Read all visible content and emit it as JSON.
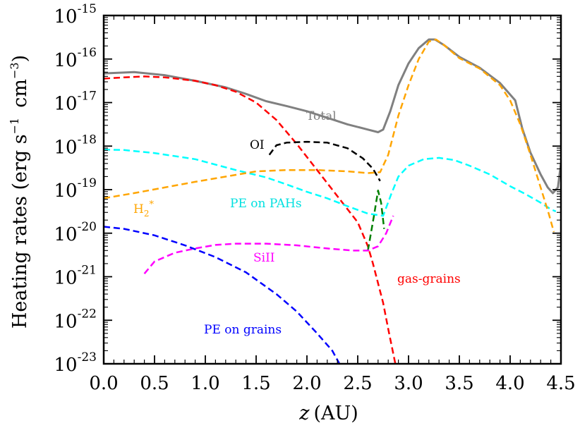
{
  "chart_data": {
    "type": "line",
    "title": "",
    "xlabel": "z",
    "xlabel_unit": "(AU)",
    "ylabel": "Heating rates (erg s",
    "ylabel_mid": "cm",
    "ylabel_sup1": "−1",
    "ylabel_sup2": "−3",
    "ylabel_close": ")",
    "yscale": "log",
    "xlim": [
      0.0,
      4.5
    ],
    "ylim_exp": [
      -23,
      -15
    ],
    "x_ticks": [
      {
        "value": 0.0,
        "label": "0.0"
      },
      {
        "value": 0.5,
        "label": "0.5"
      },
      {
        "value": 1.0,
        "label": "1.0"
      },
      {
        "value": 1.5,
        "label": "1.5"
      },
      {
        "value": 2.0,
        "label": "2.0"
      },
      {
        "value": 2.5,
        "label": "2.5"
      },
      {
        "value": 3.0,
        "label": "3.0"
      },
      {
        "value": 3.5,
        "label": "3.5"
      },
      {
        "value": 4.0,
        "label": "4.0"
      },
      {
        "value": 4.5,
        "label": "4.5"
      }
    ],
    "y_ticks": [
      {
        "exp": -23,
        "base": "10",
        "sup": "-23"
      },
      {
        "exp": -22,
        "base": "10",
        "sup": "-22"
      },
      {
        "exp": -21,
        "base": "10",
        "sup": "-21"
      },
      {
        "exp": -20,
        "base": "10",
        "sup": "-20"
      },
      {
        "exp": -19,
        "base": "10",
        "sup": "-19"
      },
      {
        "exp": -18,
        "base": "10",
        "sup": "-18"
      },
      {
        "exp": -17,
        "base": "10",
        "sup": "-17"
      },
      {
        "exp": -16,
        "base": "10",
        "sup": "-16"
      },
      {
        "exp": -15,
        "base": "10",
        "sup": "-15"
      }
    ],
    "series": [
      {
        "name": "Total",
        "color": "#808080",
        "dashed": false,
        "width": 3,
        "points": [
          [
            0,
            -16.33
          ],
          [
            0.3,
            -16.3
          ],
          [
            0.6,
            -16.37
          ],
          [
            0.9,
            -16.5
          ],
          [
            1.2,
            -16.65
          ],
          [
            1.4,
            -16.8
          ],
          [
            1.6,
            -16.97
          ],
          [
            1.8,
            -17.08
          ],
          [
            2.0,
            -17.2
          ],
          [
            2.2,
            -17.35
          ],
          [
            2.4,
            -17.5
          ],
          [
            2.6,
            -17.62
          ],
          [
            2.7,
            -17.68
          ],
          [
            2.75,
            -17.62
          ],
          [
            2.82,
            -17.2
          ],
          [
            2.9,
            -16.6
          ],
          [
            3.0,
            -16.1
          ],
          [
            3.1,
            -15.75
          ],
          [
            3.2,
            -15.55
          ],
          [
            3.26,
            -15.55
          ],
          [
            3.35,
            -15.68
          ],
          [
            3.5,
            -15.95
          ],
          [
            3.7,
            -16.2
          ],
          [
            3.9,
            -16.55
          ],
          [
            4.05,
            -16.95
          ],
          [
            4.12,
            -17.6
          ],
          [
            4.2,
            -18.15
          ],
          [
            4.3,
            -18.65
          ],
          [
            4.37,
            -18.95
          ],
          [
            4.42,
            -19.08
          ],
          [
            4.47,
            -18.95
          ],
          [
            4.5,
            -18.4
          ]
        ]
      },
      {
        "name": "gas-grains",
        "color": "#ff0000",
        "dashed": true,
        "width": 2.5,
        "points": [
          [
            0,
            -16.45
          ],
          [
            0.2,
            -16.42
          ],
          [
            0.4,
            -16.4
          ],
          [
            0.6,
            -16.42
          ],
          [
            0.9,
            -16.5
          ],
          [
            1.1,
            -16.6
          ],
          [
            1.3,
            -16.75
          ],
          [
            1.5,
            -17.0
          ],
          [
            1.7,
            -17.4
          ],
          [
            1.9,
            -17.95
          ],
          [
            2.1,
            -18.55
          ],
          [
            2.3,
            -19.15
          ],
          [
            2.5,
            -19.75
          ],
          [
            2.6,
            -20.3
          ],
          [
            2.65,
            -20.7
          ],
          [
            2.75,
            -21.6
          ],
          [
            2.8,
            -22.2
          ],
          [
            2.87,
            -23.0
          ]
        ]
      },
      {
        "name": "OI",
        "color": "#000000",
        "dashed": true,
        "width": 2.5,
        "points": [
          [
            1.63,
            -18.2
          ],
          [
            1.7,
            -17.98
          ],
          [
            1.8,
            -17.92
          ],
          [
            2.0,
            -17.9
          ],
          [
            2.2,
            -17.92
          ],
          [
            2.4,
            -18.05
          ],
          [
            2.55,
            -18.28
          ],
          [
            2.65,
            -18.52
          ],
          [
            2.72,
            -18.8
          ]
        ]
      },
      {
        "name": "PE on PAHs",
        "color": "#00ffff",
        "dashed": true,
        "width": 2.5,
        "points": [
          [
            0,
            -18.08
          ],
          [
            0.2,
            -18.09
          ],
          [
            0.5,
            -18.16
          ],
          [
            0.9,
            -18.3
          ],
          [
            1.3,
            -18.55
          ],
          [
            1.6,
            -18.72
          ],
          [
            1.8,
            -18.88
          ],
          [
            2.0,
            -19.05
          ],
          [
            2.2,
            -19.2
          ],
          [
            2.4,
            -19.38
          ],
          [
            2.6,
            -19.55
          ],
          [
            2.75,
            -19.6
          ],
          [
            2.83,
            -19.1
          ],
          [
            2.9,
            -18.7
          ],
          [
            3.0,
            -18.45
          ],
          [
            3.15,
            -18.3
          ],
          [
            3.3,
            -18.27
          ],
          [
            3.45,
            -18.32
          ],
          [
            3.6,
            -18.45
          ],
          [
            3.8,
            -18.65
          ],
          [
            4.0,
            -18.92
          ],
          [
            4.15,
            -19.1
          ],
          [
            4.3,
            -19.3
          ],
          [
            4.4,
            -19.45
          ],
          [
            4.45,
            -19.5
          ]
        ]
      },
      {
        "name": "H2*",
        "color": "#ffa500",
        "dashed": true,
        "width": 2.5,
        "points": [
          [
            0,
            -19.2
          ],
          [
            0.3,
            -19.08
          ],
          [
            0.6,
            -18.95
          ],
          [
            0.9,
            -18.82
          ],
          [
            1.2,
            -18.7
          ],
          [
            1.5,
            -18.58
          ],
          [
            1.8,
            -18.55
          ],
          [
            2.1,
            -18.55
          ],
          [
            2.4,
            -18.58
          ],
          [
            2.6,
            -18.62
          ],
          [
            2.72,
            -18.6
          ],
          [
            2.8,
            -18.2
          ],
          [
            2.9,
            -17.3
          ],
          [
            3.0,
            -16.6
          ],
          [
            3.1,
            -16.0
          ],
          [
            3.2,
            -15.6
          ],
          [
            3.27,
            -15.55
          ],
          [
            3.35,
            -15.68
          ],
          [
            3.5,
            -15.98
          ],
          [
            3.7,
            -16.22
          ],
          [
            3.9,
            -16.6
          ],
          [
            4.0,
            -16.95
          ],
          [
            4.1,
            -17.5
          ],
          [
            4.2,
            -18.2
          ],
          [
            4.3,
            -18.95
          ],
          [
            4.38,
            -19.55
          ],
          [
            4.43,
            -19.97
          ]
        ]
      },
      {
        "name": "unlabeled-green",
        "color": "#008000",
        "dashed": true,
        "width": 2.5,
        "points": [
          [
            2.6,
            -20.4
          ],
          [
            2.66,
            -19.6
          ],
          [
            2.7,
            -19.02
          ],
          [
            2.73,
            -19.3
          ],
          [
            2.76,
            -19.9
          ]
        ]
      },
      {
        "name": "SiII",
        "color": "#ff00ff",
        "dashed": true,
        "width": 2.5,
        "points": [
          [
            0.4,
            -20.93
          ],
          [
            0.5,
            -20.65
          ],
          [
            0.7,
            -20.45
          ],
          [
            0.9,
            -20.35
          ],
          [
            1.1,
            -20.27
          ],
          [
            1.3,
            -20.24
          ],
          [
            1.6,
            -20.24
          ],
          [
            1.9,
            -20.28
          ],
          [
            2.2,
            -20.35
          ],
          [
            2.45,
            -20.4
          ],
          [
            2.6,
            -20.4
          ],
          [
            2.7,
            -20.3
          ],
          [
            2.78,
            -20.0
          ],
          [
            2.85,
            -19.6
          ]
        ]
      },
      {
        "name": "PE on grains",
        "color": "#0000ff",
        "dashed": true,
        "width": 2.5,
        "points": [
          [
            0,
            -19.85
          ],
          [
            0.2,
            -19.9
          ],
          [
            0.5,
            -20.05
          ],
          [
            0.8,
            -20.28
          ],
          [
            1.1,
            -20.55
          ],
          [
            1.4,
            -20.9
          ],
          [
            1.7,
            -21.4
          ],
          [
            1.9,
            -21.8
          ],
          [
            2.1,
            -22.3
          ],
          [
            2.25,
            -22.7
          ],
          [
            2.32,
            -23.0
          ]
        ]
      }
    ],
    "annotations": [
      {
        "text": "Total",
        "color": "#808080"
      },
      {
        "text": "OI",
        "color": "#000000"
      },
      {
        "text": "PE on PAHs",
        "color": "#00ffff"
      },
      {
        "text": "H",
        "sub": "2",
        "sup": "*",
        "color": "#ffa500"
      },
      {
        "text": "SiII",
        "color": "#ff00ff"
      },
      {
        "text": "gas-grains",
        "color": "#ff0000"
      },
      {
        "text": "PE on grains",
        "color": "#0000ff"
      }
    ]
  }
}
